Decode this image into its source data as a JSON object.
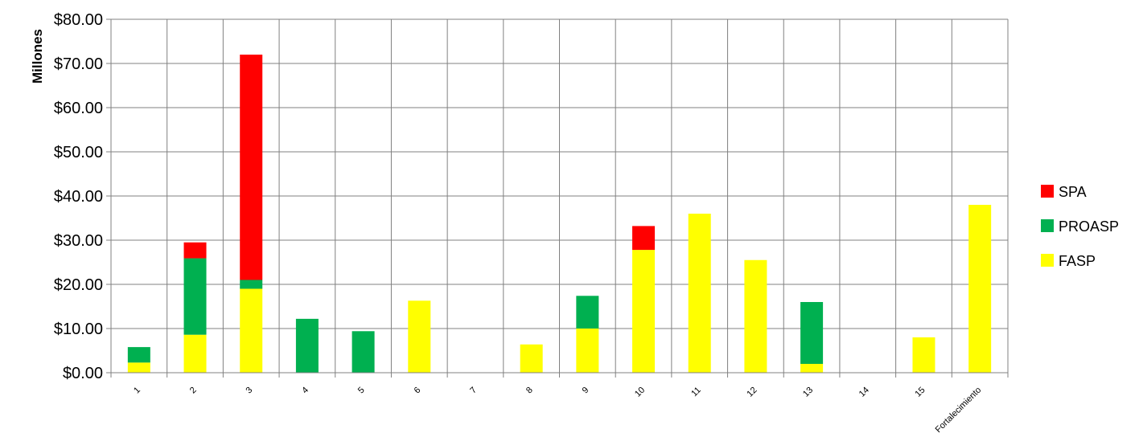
{
  "chart_data": {
    "type": "bar",
    "stacked": true,
    "ylabel": "Millones",
    "xlabel": "",
    "ylim": [
      0,
      80
    ],
    "yticks": [
      0,
      10,
      20,
      30,
      40,
      50,
      60,
      70,
      80
    ],
    "ytick_labels": [
      "$0.00",
      "$10.00",
      "$20.00",
      "$30.00",
      "$40.00",
      "$50.00",
      "$60.00",
      "$70.00",
      "$80.00"
    ],
    "categories": [
      "1",
      "2",
      "3",
      "4",
      "5",
      "6",
      "7",
      "8",
      "9",
      "10",
      "11",
      "12",
      "13",
      "14",
      "15",
      "Fortalecimiento"
    ],
    "series": [
      {
        "name": "FASP",
        "color": "#ffff00",
        "values": [
          2.3,
          8.6,
          19.0,
          0,
          0,
          16.3,
          0,
          6.4,
          10.0,
          27.8,
          36.0,
          25.5,
          2.0,
          0,
          8.0,
          38.0
        ]
      },
      {
        "name": "PROASP",
        "color": "#00b050",
        "values": [
          3.5,
          17.3,
          2.0,
          12.2,
          9.4,
          0,
          0,
          0,
          7.4,
          0,
          0,
          0,
          14.0,
          0,
          0,
          0
        ]
      },
      {
        "name": "SPA",
        "color": "#ff0000",
        "values": [
          0,
          3.6,
          51.0,
          0,
          0,
          0,
          0,
          0,
          0,
          5.4,
          0,
          0,
          0,
          0,
          0,
          0
        ]
      }
    ],
    "legend": {
      "position": "right",
      "order": [
        "SPA",
        "PROASP",
        "FASP"
      ]
    },
    "grid": true,
    "grid_color": "#808080"
  }
}
